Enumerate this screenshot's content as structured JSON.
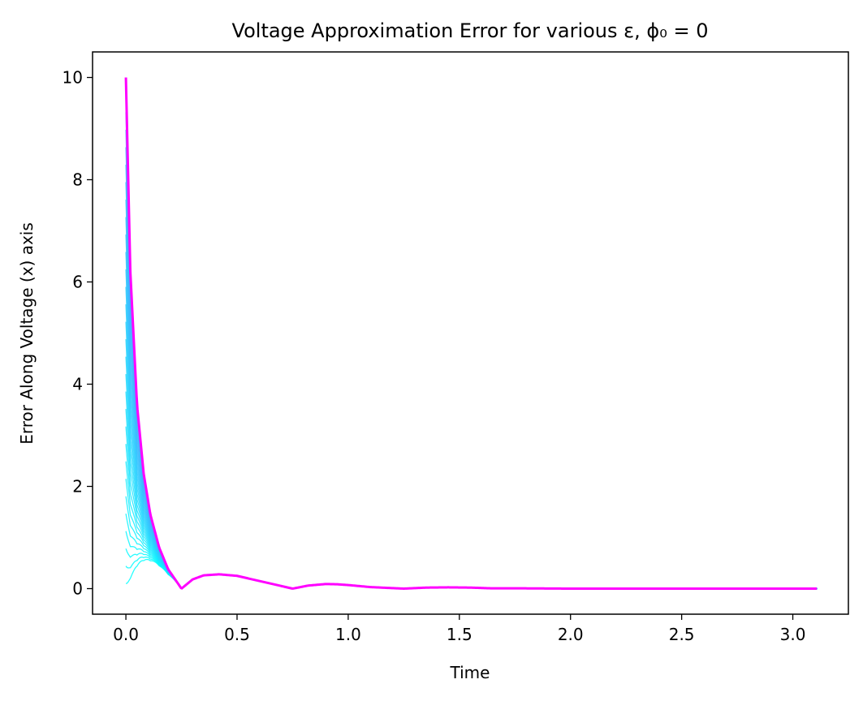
{
  "chart_data": {
    "type": "line",
    "title": "Voltage Approximation Error for various ε, ϕ₀ = 0",
    "xlabel": "Time",
    "ylabel": "Error Along Voltage (x) axis",
    "xlim": [
      -0.15,
      3.25
    ],
    "ylim": [
      -0.5,
      10.5
    ],
    "xticks": [
      0.0,
      0.5,
      1.0,
      1.5,
      2.0,
      2.5,
      3.0
    ],
    "xtick_labels": [
      "0.0",
      "0.5",
      "1.0",
      "1.5",
      "2.0",
      "2.5",
      "3.0"
    ],
    "yticks": [
      0,
      2,
      4,
      6,
      8,
      10
    ],
    "ytick_labels": [
      "0",
      "2",
      "4",
      "6",
      "8",
      "10"
    ],
    "grid": false,
    "legend": "none",
    "colors": {
      "family_low": "#00ffff",
      "family_high": "#4da6ff",
      "highlight": "#ff00ff"
    },
    "series_family": {
      "count": 30,
      "description_of_values": "curves with initial error from 0.1 up to 10, all converging to the same decaying oscillation",
      "initial_values_range": [
        0.1,
        10.0
      ]
    },
    "series": [
      {
        "x": [
          0.0,
          0.02,
          0.05,
          0.08,
          0.11,
          0.15,
          0.19,
          0.25,
          0.3,
          0.35,
          0.42,
          0.5,
          0.6,
          0.7,
          0.75,
          0.82,
          0.9,
          0.95,
          1.0,
          1.1,
          1.2,
          1.25,
          1.35,
          1.45,
          1.55,
          1.65,
          1.8,
          2.0,
          2.5,
          3.11
        ],
        "values": [
          10.0,
          6.2,
          3.6,
          2.25,
          1.45,
          0.8,
          0.38,
          0.0,
          0.18,
          0.26,
          0.28,
          0.25,
          0.15,
          0.05,
          0.0,
          0.06,
          0.09,
          0.085,
          0.07,
          0.03,
          0.01,
          0.0,
          0.02,
          0.025,
          0.02,
          0.005,
          0.005,
          0.0,
          0.0,
          0.0
        ]
      }
    ]
  }
}
